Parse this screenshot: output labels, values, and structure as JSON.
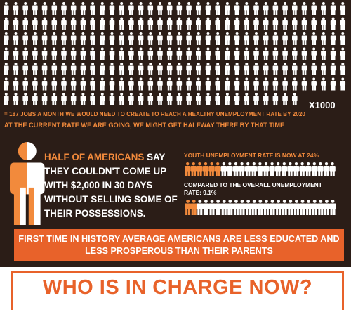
{
  "top": {
    "multiplier": "X1000",
    "line1": "= 187 JOBS A MONTH WE WOULD NEED TO CREATE TO REACH A HEALTHY UNEMPLOYMENT RATE BY 2020",
    "line2": "AT THE CURRENT RATE WE ARE GOING, WE MIGHT GET HALFWAY THERE BY THAT TIME"
  },
  "middle": {
    "highlight": "HALF OF AMERICANS",
    "rest": "SAY THEY COULDN'T COME UP WITH $2,000 IN 30 DAYS WITHOUT SELLING SOME OF THEIR POSSESSIONS.",
    "youth": "YOUTH UNEMPLOYMENT RATE IS NOW AT 24%",
    "compared": "COMPARED TO THE OVERALL UNEMPLOYMENT RATE: 9.1%"
  },
  "banner": "FIRST TIME IN HISTORY AVERAGE AMERICANS ARE LESS EDUCATED AND LESS PROSPEROUS THAN THEIR PARENTS",
  "headline": "WHO IS IN CHARGE NOW?"
}
